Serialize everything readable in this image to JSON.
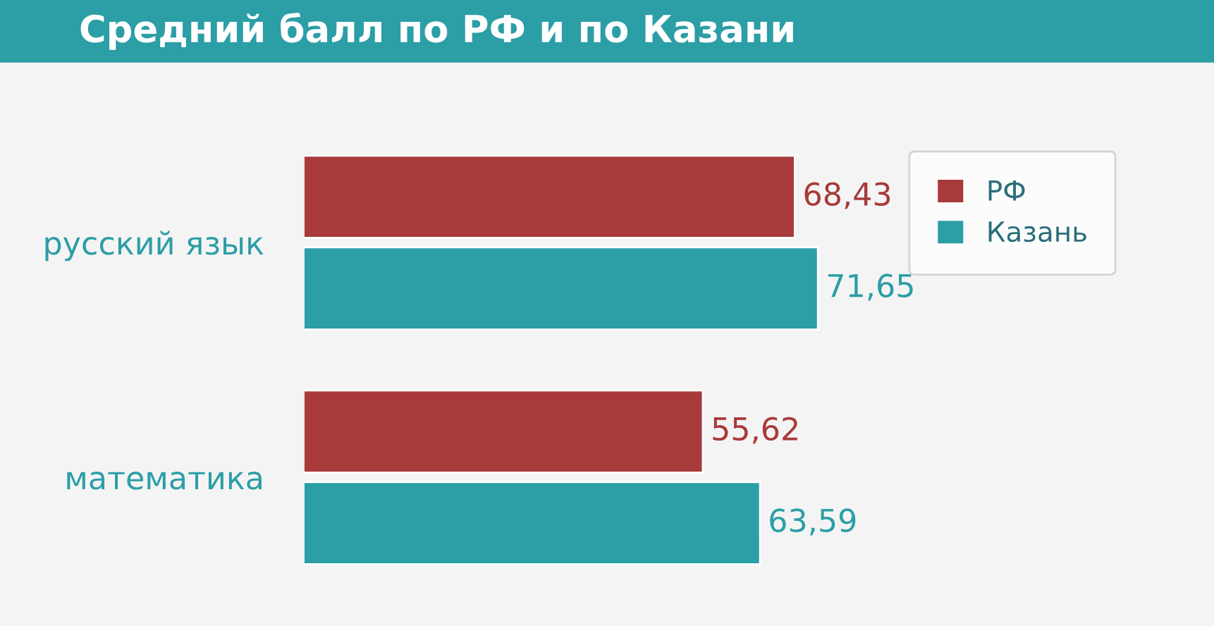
{
  "chart_data": {
    "type": "bar",
    "orientation": "horizontal",
    "title": "Средний балл по РФ и по Казани",
    "categories": [
      "русский язык",
      "математика"
    ],
    "series": [
      {
        "name": "РФ",
        "color": "#a83a3a",
        "values": [
          68.43,
          55.62
        ],
        "value_labels": [
          "68,43",
          "55,62"
        ]
      },
      {
        "name": "Казань",
        "color": "#2b9ea6",
        "values": [
          71.65,
          63.59
        ],
        "value_labels": [
          "71,65",
          "63,59"
        ]
      }
    ],
    "legend": "top right",
    "grid": false
  }
}
